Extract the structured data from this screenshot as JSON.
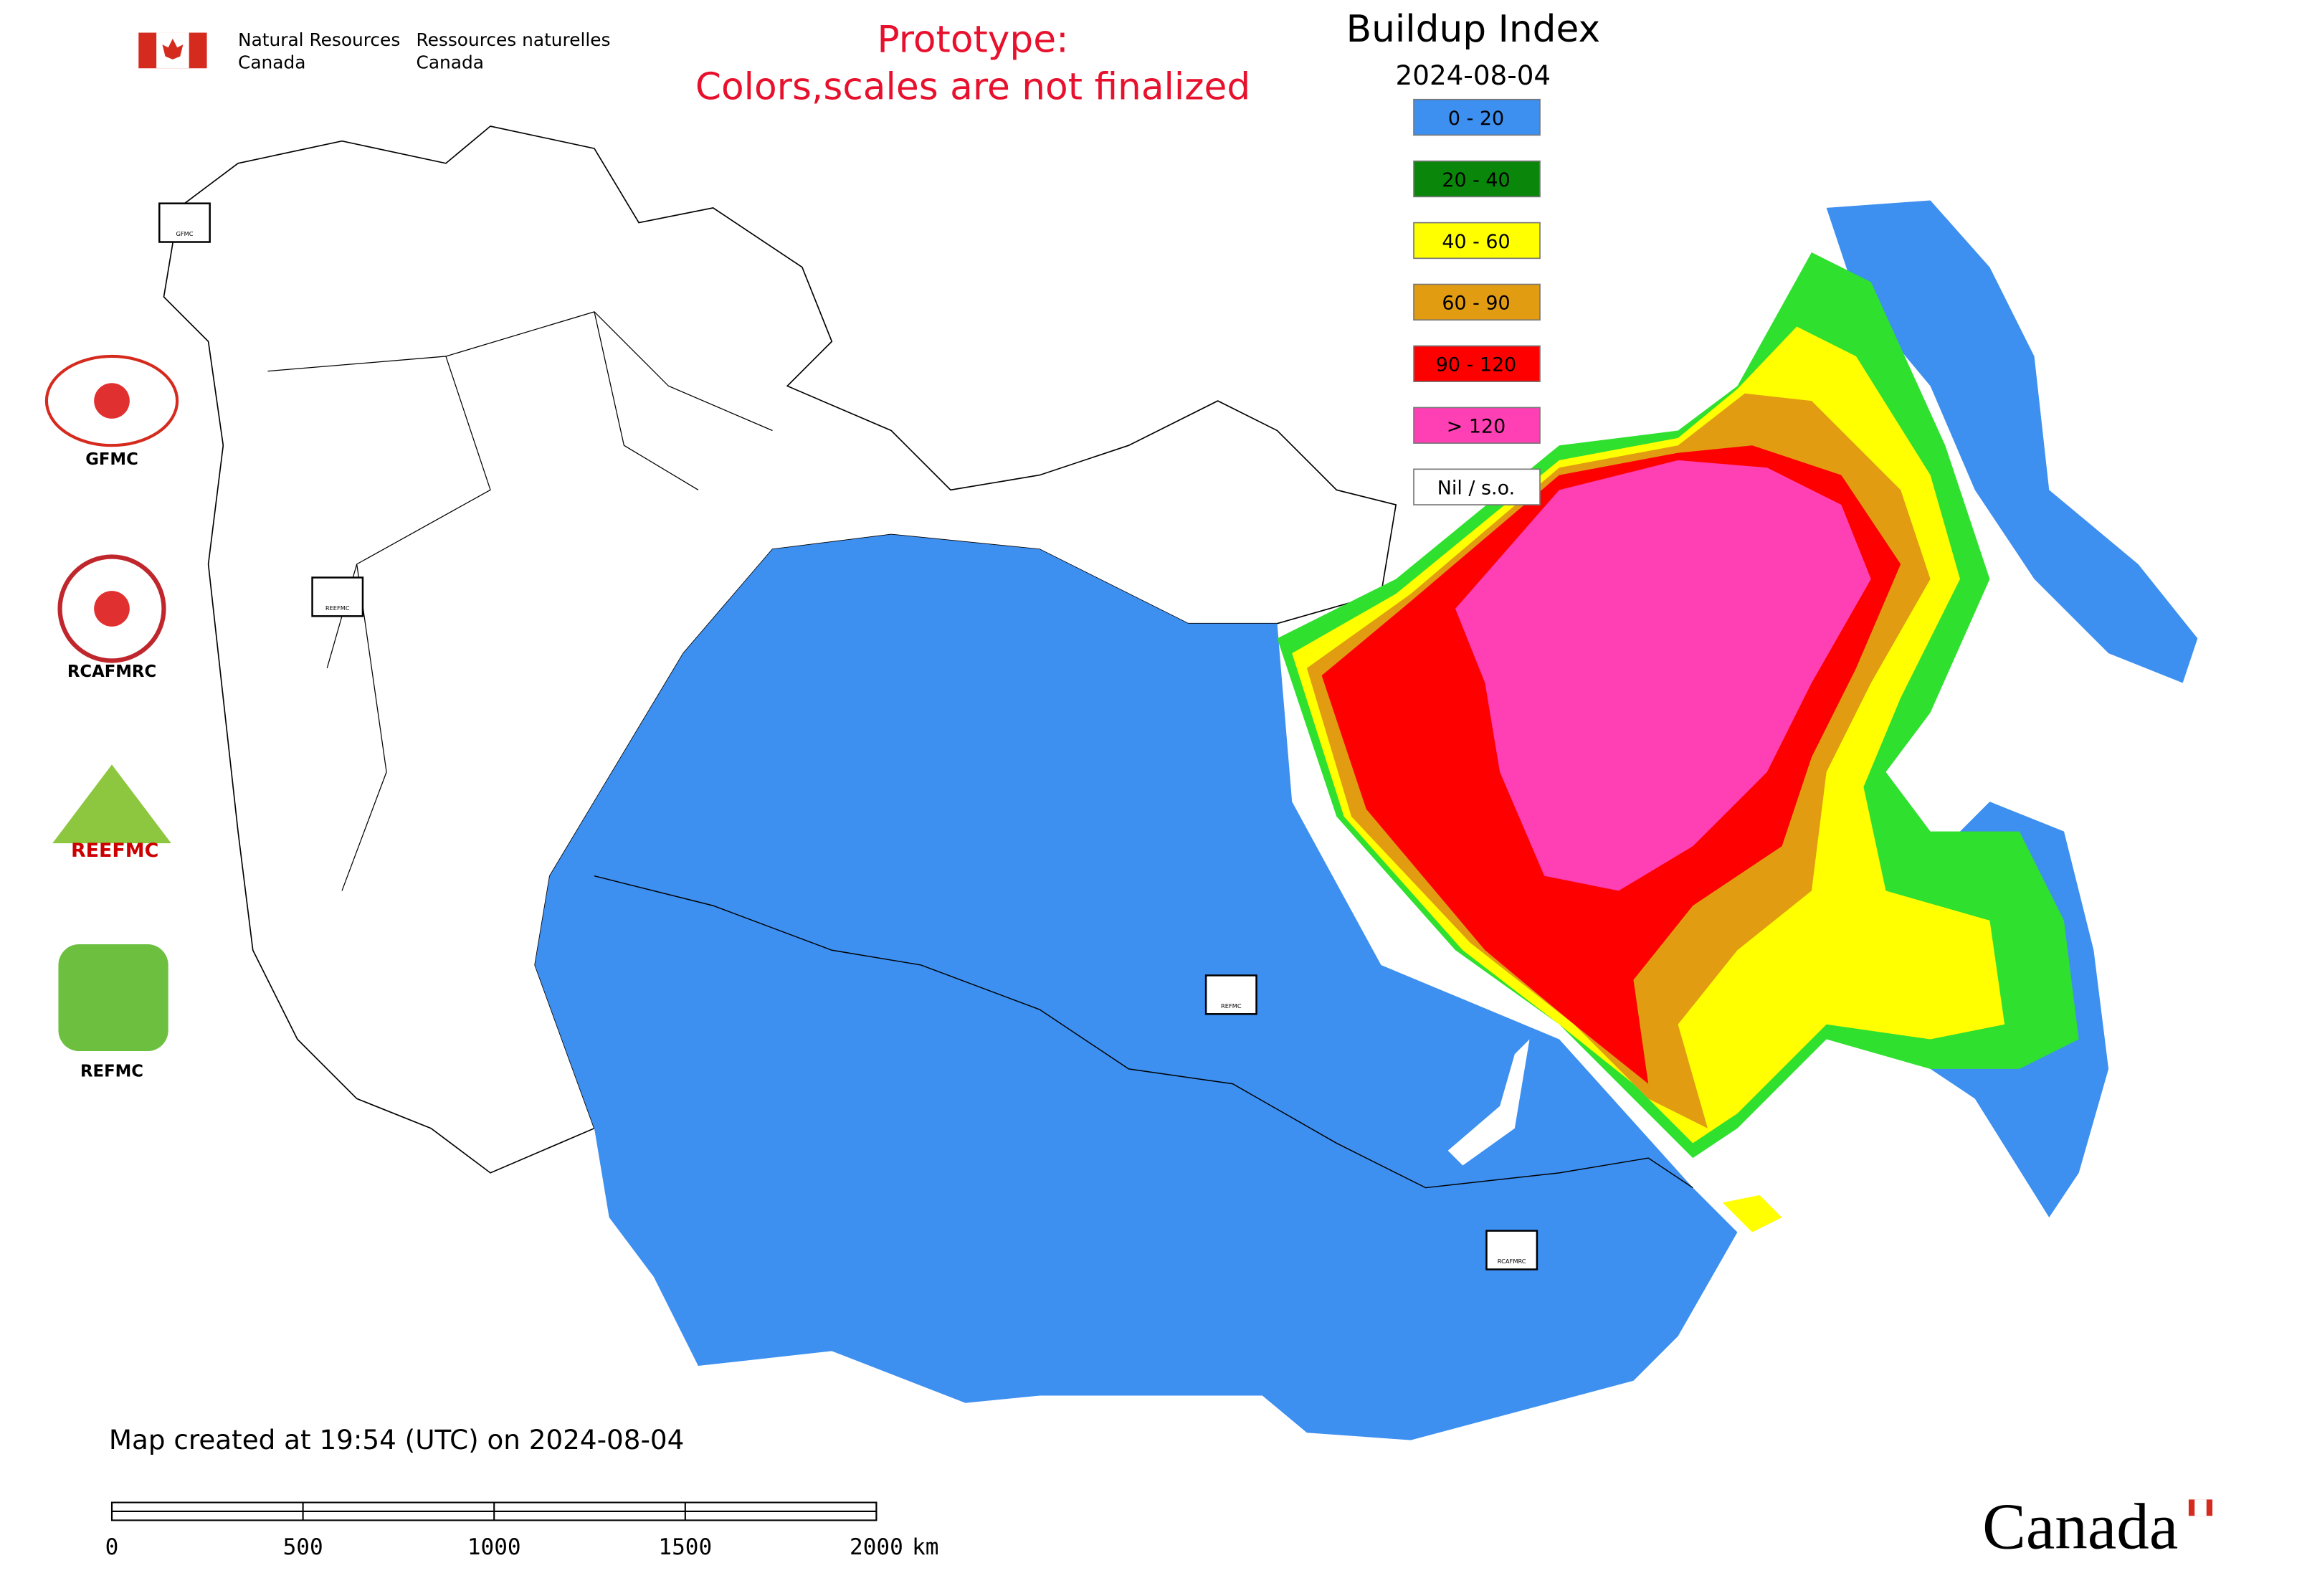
{
  "header": {
    "agency_en": [
      "Natural Resources",
      "Canada"
    ],
    "agency_fr": [
      "Ressources naturelles",
      "Canada"
    ]
  },
  "notice": [
    "Prototype:",
    "Colors,scales are not finalized"
  ],
  "legend": {
    "title": "Buildup Index",
    "date": "2024-08-04",
    "items": [
      {
        "label": "0 - 20",
        "color": "#3d8ff0"
      },
      {
        "label": "20 - 40",
        "color": "#0a870a"
      },
      {
        "label": "40 - 60",
        "color": "#ffff00"
      },
      {
        "label": "60 - 90",
        "color": "#e29c12"
      },
      {
        "label": "90 - 120",
        "color": "#ff0000"
      },
      {
        "label": "> 120",
        "color": "#ff3fb4"
      },
      {
        "label": "Nil / s.o.",
        "color": "#ffffff"
      }
    ]
  },
  "logos": [
    "GFMC",
    "RCAFMRC",
    "REEFMC",
    "REFMC"
  ],
  "footer": {
    "created": "Map created at 19:54 (UTC) on 2024-08-04",
    "wordmark": "Canada"
  },
  "scale_bar": {
    "ticks": [
      0,
      500,
      1000,
      1500,
      2000
    ],
    "unit": "km"
  }
}
